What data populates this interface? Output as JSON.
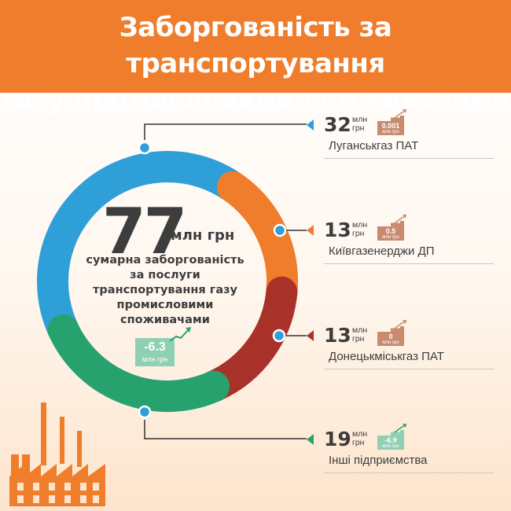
{
  "title_lines": [
    "Заборгованість за транспортування",
    "газу промисловими споживачами"
  ],
  "total": {
    "value": "77",
    "unit": "млн грн",
    "description": "сумарна заборгованість за послуги транспортування газу промисловими споживачами",
    "change_value": "-6.3",
    "change_unit": "млн грн"
  },
  "chart_data": {
    "type": "pie",
    "unit": "млн грн",
    "categories": [
      "Луганськгаз ПАТ",
      "Київгазенерджи ДП",
      "Донецькміськгаз ПАТ",
      "Інші підприємства"
    ],
    "values": [
      32,
      13,
      13,
      19
    ],
    "changes": [
      "0.001",
      "0.5",
      "0",
      "-6.9"
    ],
    "colors": [
      "#2f9fd8",
      "#ef7d2c",
      "#a8322a",
      "#27a26f"
    ]
  },
  "entries": [
    {
      "value": "32",
      "unit": "млн грн",
      "change": "0.001",
      "change_unit": "млн грн",
      "name": "Луганськгаз ПАТ",
      "color": "#2f9fd8",
      "badge_color": "#c98a6e"
    },
    {
      "value": "13",
      "unit": "млн грн",
      "change": "0.5",
      "change_unit": "млн грн",
      "name": "Київгазенерджи ДП",
      "color": "#ef7d2c",
      "badge_color": "#c98a6e"
    },
    {
      "value": "13",
      "unit": "млн грн",
      "change": "0",
      "change_unit": "млн грн",
      "name": "Донецькміськгаз ПАТ",
      "color": "#a8322a",
      "badge_color": "#c98a6e"
    },
    {
      "value": "19",
      "unit": "млн грн",
      "change": "-6.9",
      "change_unit": "млн грн",
      "name": "Інші підприємства",
      "color": "#27a26f",
      "badge_color": "#8fd0b4"
    }
  ],
  "colors": {
    "header": "#ef7d2c",
    "connector": "#333333",
    "text": "#3d3d3d"
  }
}
